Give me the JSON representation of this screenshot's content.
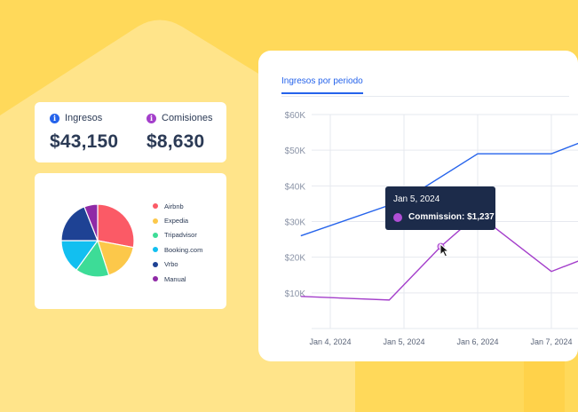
{
  "stats": [
    {
      "label": "Ingresos",
      "value": "$43,150",
      "icon": "info-icon",
      "color": "#2563eb"
    },
    {
      "label": "Comisiones",
      "value": "$8,630",
      "icon": "info-icon",
      "color": "#a43fcb"
    }
  ],
  "pie": {
    "slices": [
      {
        "label": "Airbnb",
        "value": 28,
        "color": "#fb5a66"
      },
      {
        "label": "Expedia",
        "value": 17,
        "color": "#fcc84a"
      },
      {
        "label": "Tripadvisor",
        "value": 15,
        "color": "#3ddc97"
      },
      {
        "label": "Booking.com",
        "value": 15,
        "color": "#12bff0"
      },
      {
        "label": "Vrbo",
        "value": 19,
        "color": "#1e4294"
      },
      {
        "label": "Manual",
        "value": 6,
        "color": "#8f2aa6"
      }
    ]
  },
  "chart": {
    "tab_label": "Ingresos por periodo",
    "tooltip": {
      "date": "Jan 5, 2024",
      "label": "Commission: $1,237"
    }
  },
  "chart_data": {
    "type": "line",
    "ylim": [
      0,
      60000
    ],
    "y_ticks": [
      "$60K",
      "$50K",
      "$40K",
      "$30K",
      "$20K",
      "$10K"
    ],
    "x_labels": [
      "Jan 4, 2024",
      "Jan 5, 2024",
      "Jan 6, 2024",
      "Jan 7, 2024"
    ],
    "series": [
      {
        "color": "#2563eb",
        "x": [
          3.6,
          5.0,
          6.0,
          7.0,
          7.5
        ],
        "values": [
          26000,
          36000,
          49000,
          49000,
          53000
        ]
      },
      {
        "color": "#a43fcb",
        "x": [
          3.6,
          4.8,
          5.5,
          6.0,
          7.0,
          7.5
        ],
        "values": [
          9000,
          8000,
          23000,
          32000,
          16000,
          20000
        ]
      }
    ],
    "highlight": {
      "series": 1,
      "index": 2
    }
  }
}
